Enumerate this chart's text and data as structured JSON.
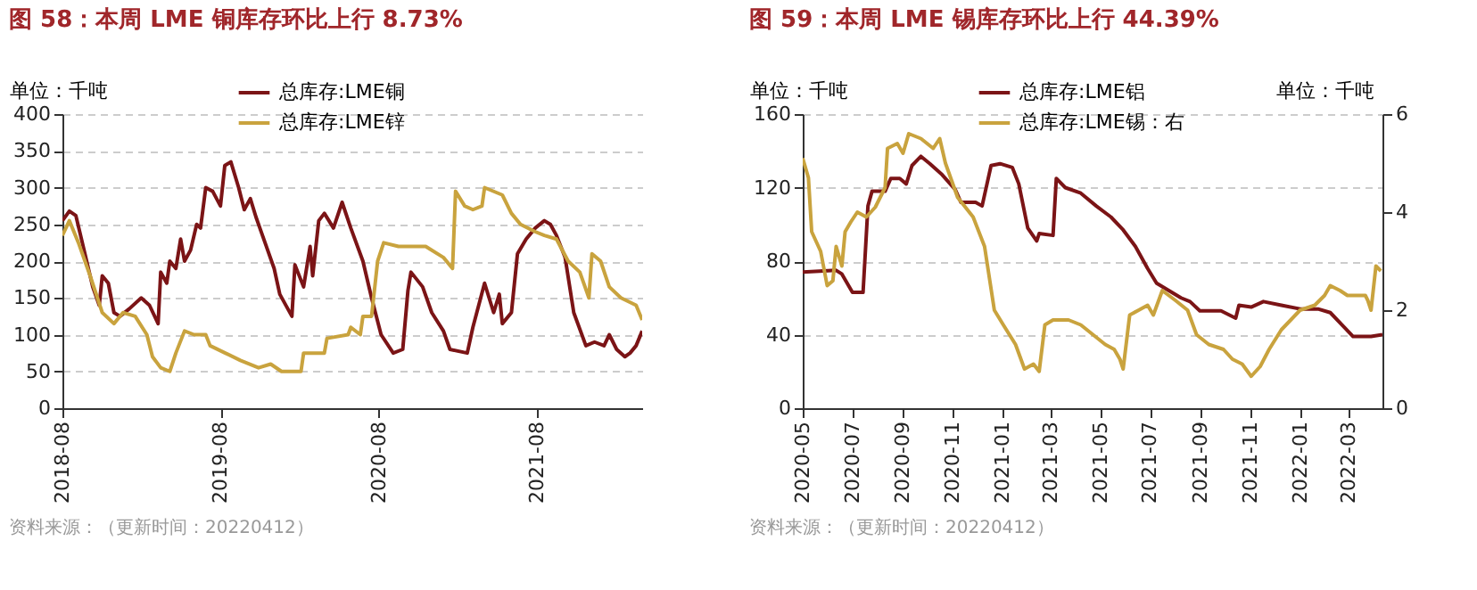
{
  "chart_data": [
    {
      "type": "line",
      "title": "图 58：本周 LME 铜库存环比上行 8.73%",
      "ylabel": "单位：千吨",
      "legend": "top",
      "grid": "y",
      "xlim": [
        "2018-08-01",
        "2022-04-01"
      ],
      "xticks": [
        "2018-08",
        "2019-08",
        "2020-08",
        "2021-08"
      ],
      "ylim": [
        0,
        400
      ],
      "yticks": [
        0,
        50,
        100,
        150,
        200,
        250,
        300,
        350,
        400
      ],
      "annotations": [
        "资料来源：（更新时间：20220412）"
      ],
      "series": [
        {
          "name": "总库存:LME铜",
          "color": "#7b1416",
          "x": [
            "2018-08-01",
            "2018-08-17",
            "2018-09-01",
            "2018-09-20",
            "2018-10-10",
            "2018-10-25",
            "2018-11-01",
            "2018-11-15",
            "2018-11-28",
            "2018-12-12",
            "2019-01-02",
            "2019-01-30",
            "2019-02-18",
            "2019-03-10",
            "2019-03-16",
            "2019-03-30",
            "2019-04-06",
            "2019-04-20",
            "2019-05-01",
            "2019-05-10",
            "2019-05-24",
            "2019-06-07",
            "2019-06-16",
            "2019-06-28",
            "2019-07-14",
            "2019-08-01",
            "2019-08-11",
            "2019-08-25",
            "2019-09-12",
            "2019-09-25",
            "2019-10-09",
            "2019-10-22",
            "2019-11-12",
            "2019-12-03",
            "2019-12-16",
            "2020-01-13",
            "2020-01-20",
            "2020-02-09",
            "2020-02-24",
            "2020-03-01",
            "2020-03-15",
            "2020-03-28",
            "2020-04-18",
            "2020-05-08",
            "2020-05-28",
            "2020-06-25",
            "2020-07-15",
            "2020-08-06",
            "2020-09-03",
            "2020-09-25",
            "2020-10-07",
            "2020-10-14",
            "2020-11-10",
            "2020-12-01",
            "2020-12-28",
            "2021-01-12",
            "2021-02-21",
            "2021-03-06",
            "2021-04-02",
            "2021-04-23",
            "2021-05-06",
            "2021-05-13",
            "2021-06-03",
            "2021-06-17",
            "2021-07-07",
            "2021-07-28",
            "2021-08-18",
            "2021-09-01",
            "2021-09-15",
            "2021-10-05",
            "2021-10-25",
            "2021-11-22",
            "2021-12-12",
            "2022-01-03",
            "2022-01-15",
            "2022-02-01",
            "2022-02-20",
            "2022-03-04",
            "2022-03-18",
            "2022-04-01"
          ],
          "values": [
            255,
            268,
            262,
            215,
            165,
            140,
            180,
            170,
            130,
            125,
            135,
            150,
            140,
            115,
            185,
            170,
            200,
            190,
            230,
            200,
            215,
            250,
            245,
            300,
            295,
            275,
            330,
            335,
            300,
            270,
            285,
            260,
            225,
            190,
            155,
            125,
            195,
            165,
            220,
            180,
            255,
            265,
            245,
            280,
            245,
            200,
            150,
            100,
            75,
            80,
            160,
            185,
            165,
            130,
            105,
            80,
            75,
            110,
            170,
            130,
            155,
            115,
            130,
            210,
            230,
            245,
            255,
            250,
            235,
            205,
            130,
            85,
            90,
            85,
            100,
            80,
            70,
            75,
            85,
            105
          ]
        },
        {
          "name": "总库存:LME锌",
          "color": "#c9a33e",
          "x": [
            "2018-08-01",
            "2018-08-17",
            "2018-09-07",
            "2018-10-04",
            "2018-11-01",
            "2018-11-28",
            "2018-12-19",
            "2019-01-16",
            "2019-02-12",
            "2019-02-25",
            "2019-03-16",
            "2019-04-06",
            "2019-04-20",
            "2019-05-10",
            "2019-06-01",
            "2019-06-28",
            "2019-07-08",
            "2019-08-12",
            "2019-09-16",
            "2019-10-28",
            "2019-11-25",
            "2019-12-20",
            "2020-02-03",
            "2020-02-09",
            "2020-03-28",
            "2020-04-03",
            "2020-05-22",
            "2020-05-28",
            "2020-06-19",
            "2020-06-25",
            "2020-07-15",
            "2020-07-29",
            "2020-08-12",
            "2020-09-15",
            "2020-11-17",
            "2020-12-28",
            "2021-01-18",
            "2021-01-25",
            "2021-02-15",
            "2021-03-06",
            "2021-03-27",
            "2021-04-02",
            "2021-05-13",
            "2021-06-03",
            "2021-06-24",
            "2021-07-28",
            "2021-08-18",
            "2021-09-15",
            "2021-10-12",
            "2021-11-08",
            "2021-11-29",
            "2021-12-06",
            "2021-12-26",
            "2022-01-15",
            "2022-02-11",
            "2022-03-18",
            "2022-04-01"
          ],
          "values": [
            235,
            255,
            225,
            180,
            130,
            115,
            130,
            125,
            100,
            70,
            55,
            50,
            75,
            105,
            100,
            100,
            85,
            75,
            65,
            55,
            60,
            50,
            50,
            75,
            75,
            95,
            100,
            110,
            100,
            125,
            125,
            200,
            225,
            220,
            220,
            205,
            190,
            295,
            275,
            270,
            275,
            300,
            290,
            265,
            250,
            240,
            235,
            230,
            200,
            185,
            150,
            210,
            200,
            165,
            150,
            140,
            120
          ]
        }
      ]
    },
    {
      "type": "line",
      "title": "图 59：本周 LME 锡库存环比上行 44.39%",
      "ylabel": "单位：千吨",
      "y2label": "单位：千吨",
      "legend": "top",
      "grid": "y",
      "xlim": [
        "2020-05-01",
        "2022-04-12"
      ],
      "xticks": [
        "2020-05",
        "2020-07",
        "2020-09",
        "2020-11",
        "2021-01",
        "2021-03",
        "2021-05",
        "2021-07",
        "2021-09",
        "2021-11",
        "2022-01",
        "2022-03"
      ],
      "ylim": [
        0,
        160
      ],
      "yticks": [
        0,
        40,
        80,
        120,
        160
      ],
      "y2lim": [
        0,
        6
      ],
      "y2ticks": [
        0,
        2,
        4,
        6
      ],
      "annotations": [
        "资料来源：（更新时间：20220412）"
      ],
      "series": [
        {
          "name": "总库存:LME铝",
          "color": "#7b1416",
          "x": [
            "2020-05-01",
            "2020-06-11",
            "2020-06-18",
            "2020-07-01",
            "2020-07-14",
            "2020-07-20",
            "2020-07-25",
            "2020-08-10",
            "2020-08-17",
            "2020-08-28",
            "2020-09-05",
            "2020-09-12",
            "2020-09-23",
            "2020-10-04",
            "2020-10-19",
            "2020-11-04",
            "2020-11-11",
            "2020-11-29",
            "2020-12-07",
            "2020-12-18",
            "2020-12-29",
            "2021-01-13",
            "2021-01-21",
            "2021-02-01",
            "2021-02-12",
            "2021-02-15",
            "2021-03-04",
            "2021-03-08",
            "2021-03-19",
            "2021-04-07",
            "2021-04-26",
            "2021-05-14",
            "2021-05-29",
            "2021-06-13",
            "2021-06-28",
            "2021-07-09",
            "2021-07-24",
            "2021-08-08",
            "2021-08-19",
            "2021-08-31",
            "2021-09-26",
            "2021-10-14",
            "2021-10-18",
            "2021-11-02",
            "2021-11-17",
            "2021-12-09",
            "2022-01-01",
            "2022-01-23",
            "2022-02-07",
            "2022-02-22",
            "2022-03-07",
            "2022-03-29",
            "2022-04-12"
          ],
          "values": [
            74,
            75,
            73,
            63,
            63,
            110,
            118,
            118,
            125,
            125,
            122,
            132,
            137,
            133,
            127,
            119,
            112,
            112,
            110,
            132,
            133,
            131,
            122,
            98,
            91,
            95,
            94,
            125,
            120,
            117,
            110,
            104,
            97,
            88,
            76,
            68,
            64,
            60,
            58,
            53,
            53,
            49,
            56,
            55,
            58,
            56,
            54,
            54,
            52,
            45,
            39,
            39,
            40
          ]
        },
        {
          "name": "总库存:LME锡：右",
          "color": "#c9a33e",
          "axis": "y2",
          "x": [
            "2020-05-01",
            "2020-05-08",
            "2020-05-12",
            "2020-05-23",
            "2020-05-31",
            "2020-06-07",
            "2020-06-11",
            "2020-06-18",
            "2020-06-22",
            "2020-06-29",
            "2020-07-07",
            "2020-07-18",
            "2020-07-29",
            "2020-08-10",
            "2020-08-13",
            "2020-08-25",
            "2020-09-01",
            "2020-09-08",
            "2020-09-23",
            "2020-10-08",
            "2020-10-16",
            "2020-10-23",
            "2020-11-07",
            "2020-11-26",
            "2020-12-10",
            "2020-12-22",
            "2021-01-02",
            "2021-01-17",
            "2021-01-28",
            "2021-02-08",
            "2021-02-15",
            "2021-02-22",
            "2021-03-04",
            "2021-03-23",
            "2021-04-07",
            "2021-04-22",
            "2021-05-07",
            "2021-05-18",
            "2021-05-25",
            "2021-05-29",
            "2021-06-06",
            "2021-06-17",
            "2021-06-28",
            "2021-07-05",
            "2021-07-16",
            "2021-08-01",
            "2021-08-16",
            "2021-08-27",
            "2021-09-11",
            "2021-09-29",
            "2021-10-10",
            "2021-10-22",
            "2021-11-02",
            "2021-11-13",
            "2021-11-24",
            "2021-12-09",
            "2022-01-01",
            "2022-01-19",
            "2022-01-31",
            "2022-02-07",
            "2022-02-19",
            "2022-02-28",
            "2022-03-22",
            "2022-03-25",
            "2022-03-29",
            "2022-04-04",
            "2022-04-10"
          ],
          "values": [
            5.1,
            4.7,
            3.6,
            3.2,
            2.5,
            2.6,
            3.3,
            2.9,
            3.6,
            3.8,
            4.0,
            3.9,
            4.1,
            4.5,
            5.3,
            5.4,
            5.2,
            5.6,
            5.5,
            5.3,
            5.5,
            5.0,
            4.3,
            3.9,
            3.3,
            2.0,
            1.7,
            1.3,
            0.8,
            0.9,
            0.75,
            1.7,
            1.8,
            1.8,
            1.7,
            1.5,
            1.3,
            1.2,
            1.0,
            0.8,
            1.9,
            2.0,
            2.1,
            1.9,
            2.4,
            2.2,
            2.0,
            1.5,
            1.3,
            1.2,
            1.0,
            0.9,
            0.65,
            0.85,
            1.2,
            1.6,
            2.0,
            2.1,
            2.3,
            2.5,
            2.4,
            2.3,
            2.3,
            2.2,
            2.0,
            2.9,
            2.8
          ]
        }
      ]
    }
  ]
}
